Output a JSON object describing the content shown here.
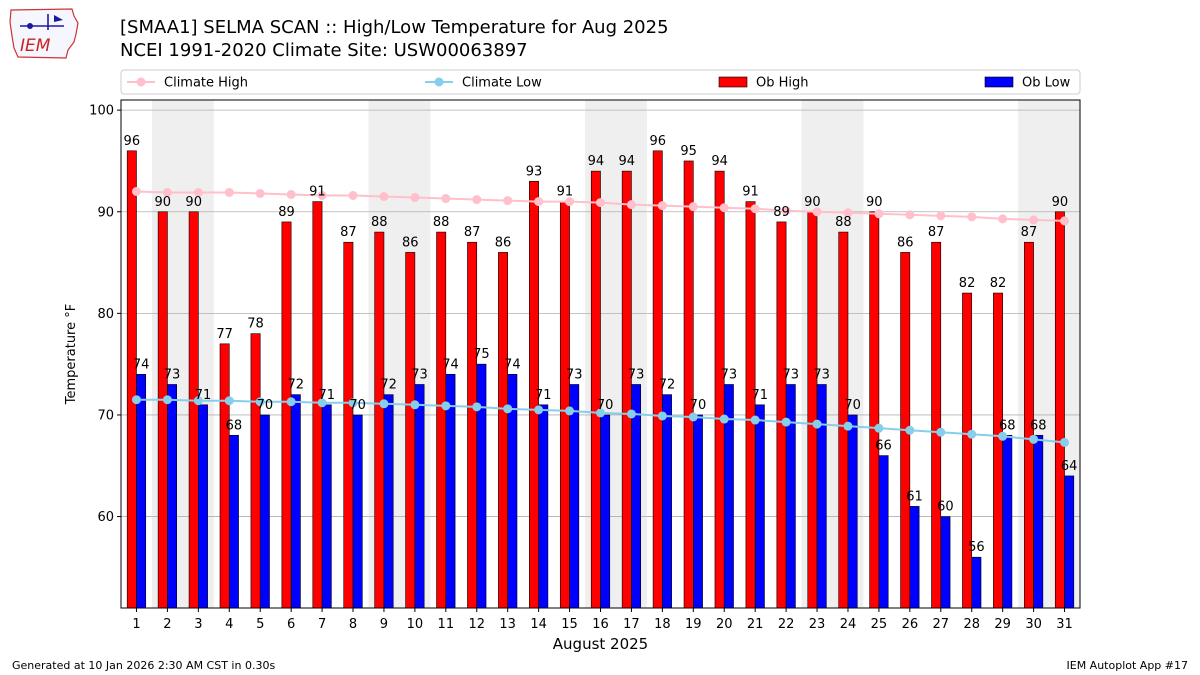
{
  "title": "[SMAA1] SELMA SCAN :: High/Low Temperature for Aug 2025",
  "subtitle": "NCEI 1991-2020 Climate Site: USW00063897",
  "logo_text": "IEM",
  "footer": {
    "left": "Generated at 10 Jan 2026 2:30 AM CST in 0.30s",
    "right": "IEM Autoplot App #17"
  },
  "colors": {
    "ob_high": "#ff0000",
    "ob_low": "#0000ff",
    "climate_high": "#ffc0cb",
    "climate_low": "#87ceeb",
    "weekend_band": "#efefef"
  },
  "chart_data": {
    "type": "bar",
    "xlabel": "August 2025",
    "ylabel": "Temperature °F",
    "ylim": [
      51,
      101
    ],
    "yticks": [
      60,
      70,
      80,
      90,
      100
    ],
    "grid": true,
    "legend_position": "top",
    "categories": [
      "1",
      "2",
      "3",
      "4",
      "5",
      "6",
      "7",
      "8",
      "9",
      "10",
      "11",
      "12",
      "13",
      "14",
      "15",
      "16",
      "17",
      "18",
      "19",
      "20",
      "21",
      "22",
      "23",
      "24",
      "25",
      "26",
      "27",
      "28",
      "29",
      "30",
      "31"
    ],
    "shaded_days": [
      2,
      3,
      9,
      10,
      16,
      17,
      23,
      24,
      30,
      31
    ],
    "series": [
      {
        "name": "Climate High",
        "kind": "line",
        "values": [
          92.0,
          91.9,
          91.9,
          91.9,
          91.8,
          91.7,
          91.6,
          91.6,
          91.5,
          91.4,
          91.3,
          91.2,
          91.1,
          91.0,
          91.0,
          90.9,
          90.7,
          90.6,
          90.5,
          90.4,
          90.3,
          90.1,
          90.0,
          89.9,
          89.8,
          89.7,
          89.6,
          89.5,
          89.3,
          89.2,
          89.1
        ]
      },
      {
        "name": "Climate Low",
        "kind": "line",
        "values": [
          71.5,
          71.5,
          71.4,
          71.4,
          71.3,
          71.3,
          71.2,
          71.2,
          71.1,
          71.0,
          70.9,
          70.8,
          70.6,
          70.5,
          70.4,
          70.2,
          70.1,
          69.9,
          69.8,
          69.6,
          69.5,
          69.3,
          69.1,
          68.9,
          68.7,
          68.5,
          68.3,
          68.1,
          67.9,
          67.6,
          67.3
        ]
      },
      {
        "name": "Ob High",
        "kind": "bar",
        "values": [
          96,
          90,
          90,
          77,
          78,
          89,
          91,
          87,
          88,
          86,
          88,
          87,
          86,
          93,
          91,
          94,
          94,
          96,
          95,
          94,
          91,
          89,
          90,
          88,
          90,
          86,
          87,
          82,
          82,
          87,
          90
        ]
      },
      {
        "name": "Ob Low",
        "kind": "bar",
        "values": [
          74,
          73,
          71,
          68,
          70,
          72,
          71,
          70,
          72,
          73,
          74,
          75,
          74,
          71,
          73,
          70,
          73,
          72,
          70,
          73,
          71,
          73,
          73,
          70,
          66,
          61,
          60,
          56,
          68,
          68,
          64
        ]
      }
    ]
  }
}
